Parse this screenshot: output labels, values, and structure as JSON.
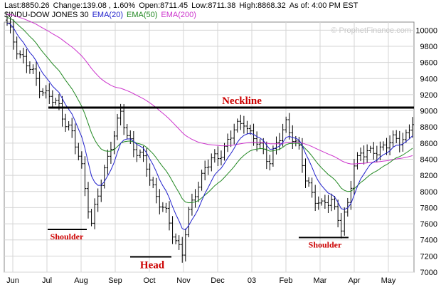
{
  "header": {
    "line1": [
      "Last:8850.26",
      "Change:139.08 , 1.60%",
      "Open:8711.45",
      "Low:8711.38",
      "High:8868.32",
      "As of: 4:00 PM EST"
    ],
    "symbol": "$INDU-DOW JONES 30",
    "legend": [
      {
        "label": "EMA(20)",
        "color": "#2222cc"
      },
      {
        "label": "EMA(50)",
        "color": "#228822"
      },
      {
        "label": "EMA(200)",
        "color": "#cc33cc"
      }
    ],
    "watermark": "© ProphetFinance.com"
  },
  "chart_data": {
    "type": "ohlc",
    "x_ticks": [
      "Jun",
      "Jul",
      "Aug",
      "Sep",
      "Oct",
      "Nov",
      "Dec",
      "03",
      "Feb",
      "Mar",
      "Apr",
      "May"
    ],
    "y_ticks": [
      "7000",
      "7200",
      "7400",
      "7600",
      "7800",
      "8000",
      "8200",
      "8400",
      "8600",
      "8800",
      "9000",
      "9200",
      "9400",
      "9600",
      "9800",
      "10000"
    ],
    "ylim": [
      7000,
      10100
    ],
    "colors": {
      "price": "#000000",
      "ema20": "#2222cc",
      "ema50": "#228822",
      "ema200": "#cc33cc",
      "annotation": "#cc0000"
    },
    "anchors": [
      [
        0,
        10050
      ],
      [
        4,
        9700
      ],
      [
        8,
        9450
      ],
      [
        12,
        9200
      ],
      [
        16,
        9050
      ],
      [
        20,
        8700
      ],
      [
        23,
        8300
      ],
      [
        26,
        7600
      ],
      [
        29,
        8100
      ],
      [
        32,
        8600
      ],
      [
        35,
        8950
      ],
      [
        37,
        8700
      ],
      [
        40,
        8500
      ],
      [
        43,
        8300
      ],
      [
        46,
        7950
      ],
      [
        49,
        7700
      ],
      [
        52,
        7400
      ],
      [
        54,
        7250
      ],
      [
        56,
        7700
      ],
      [
        58,
        8000
      ],
      [
        61,
        8300
      ],
      [
        64,
        8400
      ],
      [
        67,
        8550
      ],
      [
        70,
        8750
      ],
      [
        73,
        8900
      ],
      [
        75,
        8700
      ],
      [
        78,
        8550
      ],
      [
        81,
        8400
      ],
      [
        84,
        8650
      ],
      [
        86,
        8850
      ],
      [
        88,
        8700
      ],
      [
        90,
        8500
      ],
      [
        92,
        8150
      ],
      [
        94,
        8000
      ],
      [
        97,
        7800
      ],
      [
        100,
        7900
      ],
      [
        102,
        7700
      ],
      [
        103,
        7550
      ],
      [
        105,
        7800
      ],
      [
        107,
        8350
      ],
      [
        109,
        8500
      ],
      [
        112,
        8450
      ],
      [
        115,
        8550
      ],
      [
        118,
        8600
      ],
      [
        121,
        8650
      ],
      [
        123,
        8700
      ],
      [
        125,
        8850
      ]
    ],
    "annotations": {
      "neckline": {
        "label": "Neckline",
        "y": 9040
      },
      "left_shoulder": {
        "label": "Shoulder",
        "y": 7530
      },
      "head": {
        "label": "Head",
        "y": 7190
      },
      "right_shoulder": {
        "label": "Shoulder",
        "y": 7430
      }
    }
  }
}
